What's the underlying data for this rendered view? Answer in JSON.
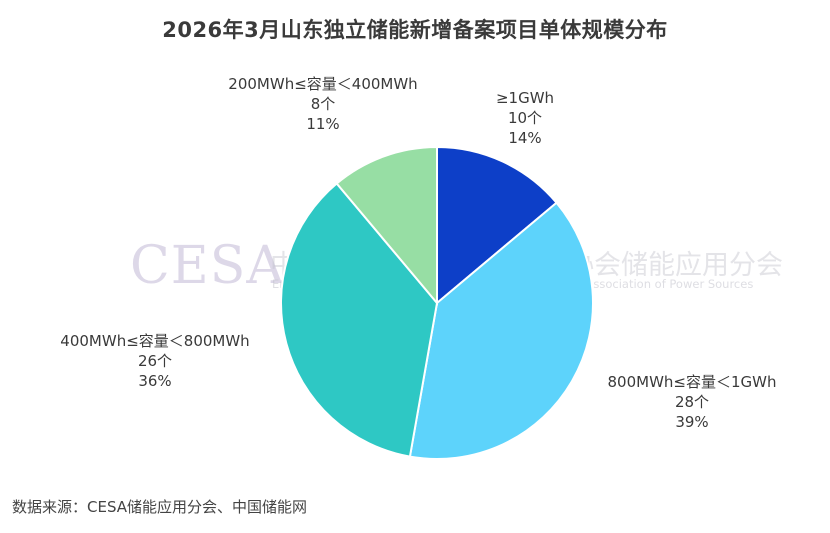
{
  "title": "2026年3月山东独立储能新增备案项目单体规模分布",
  "source": "数据来源：CESA储能应用分会、中国储能网",
  "watermark": {
    "logo": "CESA",
    "cn": "中国化学与物理电源行业协会储能应用分会",
    "en": "Energy Storage Application Branch of China Industrial Association of Power Sources"
  },
  "chart_data": {
    "type": "pie",
    "title": "2026年3月山东独立储能新增备案项目单体规模分布",
    "slices": [
      {
        "label": "≥1GWh",
        "count": 10,
        "count_text": "10个",
        "percent": 14,
        "percent_text": "14%",
        "color": "#0d3fc8"
      },
      {
        "label": "800MWh≤容量＜1GWh",
        "count": 28,
        "count_text": "28个",
        "percent": 39,
        "percent_text": "39%",
        "color": "#5dd3fb"
      },
      {
        "label": "400MWh≤容量＜800MWh",
        "count": 26,
        "count_text": "26个",
        "percent": 36,
        "percent_text": "36%",
        "color": "#2ec8c4"
      },
      {
        "label": "200MWh≤容量＜400MWh",
        "count": 8,
        "count_text": "8个",
        "percent": 11,
        "percent_text": "11%",
        "color": "#97dea4"
      }
    ],
    "start_angle": "12 o'clock",
    "direction": "clockwise",
    "legend": "none"
  }
}
